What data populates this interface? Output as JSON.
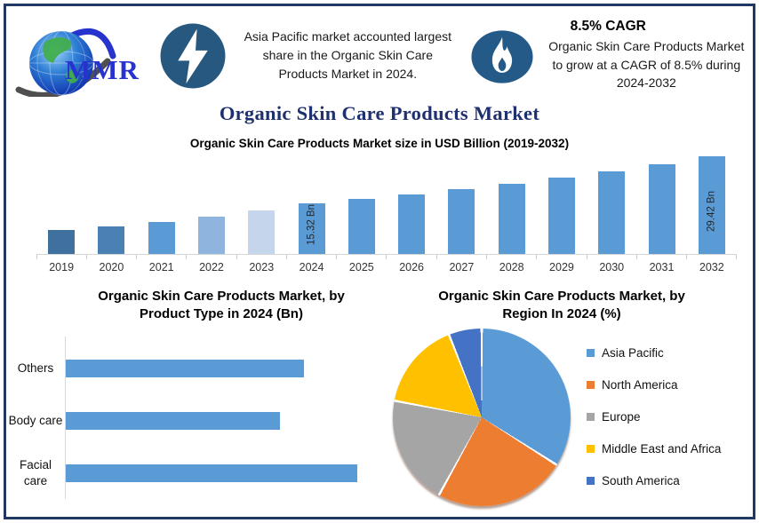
{
  "header": {
    "logo_text": "MMR",
    "highlight_1": {
      "icon": "lightning-icon",
      "text": "Asia Pacific market accounted largest share in the Organic Skin Care Products Market in 2024."
    },
    "highlight_2": {
      "icon": "flame-icon",
      "title": "8.5% CAGR",
      "text": "Organic Skin Care Products Market to grow at a CAGR of 8.5% during 2024-2032"
    }
  },
  "page_title": "Organic Skin Care Products Market",
  "colors": {
    "frame_border": "#1f3864",
    "page_title": "#1f3070",
    "icon_background": "#27587f",
    "bar_default": "#5b9bd5",
    "axis_line": "#d6d6d6"
  },
  "chart_data": [
    {
      "type": "bar",
      "title": "Organic Skin Care Products Market size in USD Billion (2019-2032)",
      "unit": "USD Billion",
      "categories": [
        "2019",
        "2020",
        "2021",
        "2022",
        "2023",
        "2024",
        "2025",
        "2026",
        "2027",
        "2028",
        "2029",
        "2030",
        "2031",
        "2032"
      ],
      "values": [
        7.2,
        8.3,
        9.7,
        11.1,
        13.1,
        15.32,
        16.62,
        18.03,
        19.57,
        21.23,
        23.03,
        24.99,
        27.12,
        29.42
      ],
      "data_labels": [
        {
          "category": "2024",
          "text": "15.32 Bn"
        },
        {
          "category": "2032",
          "text": "29.42 Bn"
        }
      ],
      "bar_colors": {
        "2019": "#40719e",
        "2020": "#4a80b4",
        "2021": "#5b9bd5",
        "2022": "#8fb4de",
        "2023": "#c5d5ec",
        "default": "#5b9bd5"
      },
      "ylim": [
        0,
        31
      ],
      "grid": false,
      "legend": "none"
    },
    {
      "type": "bar-horizontal",
      "title": "Organic Skin Care Products Market, by Product Type in 2024 (Bn)",
      "categories": [
        "Others",
        "Body care",
        "Facial care"
      ],
      "values": [
        4.9,
        4.4,
        6.0
      ],
      "color": "#5b9bd5",
      "grid": false,
      "legend": "none"
    },
    {
      "type": "pie",
      "title": "Organic Skin Care Products Market, by Region In 2024 (%)",
      "slices": [
        {
          "label": "Asia Pacific",
          "value": 34,
          "color": "#5b9bd5"
        },
        {
          "label": "North America",
          "value": 24,
          "color": "#ed7d31"
        },
        {
          "label": "Europe",
          "value": 20,
          "color": "#a5a5a5"
        },
        {
          "label": "Middle East and Africa",
          "value": 16,
          "color": "#ffc000"
        },
        {
          "label": "South America",
          "value": 6,
          "color": "#4472c4"
        }
      ],
      "start_angle": 0,
      "legend_position": "right"
    }
  ]
}
